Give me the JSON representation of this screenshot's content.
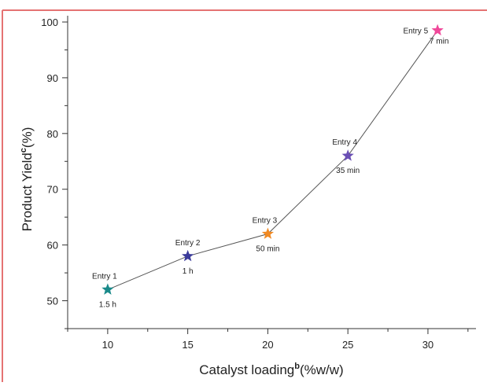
{
  "chart_data": {
    "type": "line",
    "title": "",
    "xlabel": "Catalyst loading",
    "xlabel_superscript": "b",
    "xlabel_suffix": "(%w/w)",
    "ylabel": "Product Yield",
    "ylabel_superscript": "c",
    "ylabel_suffix": "(%)",
    "xlim": [
      7.5,
      33
    ],
    "ylim": [
      45,
      100
    ],
    "xticks": [
      10,
      15,
      20,
      25,
      30
    ],
    "yticks": [
      50,
      60,
      70,
      80,
      90,
      100
    ],
    "grid": false,
    "line_color": "#555555",
    "frame_color": "#e57373",
    "points": [
      {
        "x": 10,
        "y": 52,
        "label": "Entry 1",
        "time": "1.5 h",
        "color": "#1a8a8a",
        "label_pos": "above-left",
        "time_pos": "below"
      },
      {
        "x": 15,
        "y": 58,
        "label": "Entry 2",
        "time": "1 h",
        "color": "#3b3b9a",
        "label_pos": "above",
        "time_pos": "below"
      },
      {
        "x": 20,
        "y": 62,
        "label": "Entry 3",
        "time": "50 min",
        "color": "#f08a24",
        "label_pos": "above-left",
        "time_pos": "below"
      },
      {
        "x": 25,
        "y": 76,
        "label": "Entry 4",
        "time": "35 min",
        "color": "#6a4fb5",
        "label_pos": "above-left",
        "time_pos": "below"
      },
      {
        "x": 30.6,
        "y": 98.5,
        "label": "Entry 5",
        "time": "7 min",
        "color": "#f0489a",
        "label_pos": "left",
        "time_pos": "below"
      }
    ]
  }
}
